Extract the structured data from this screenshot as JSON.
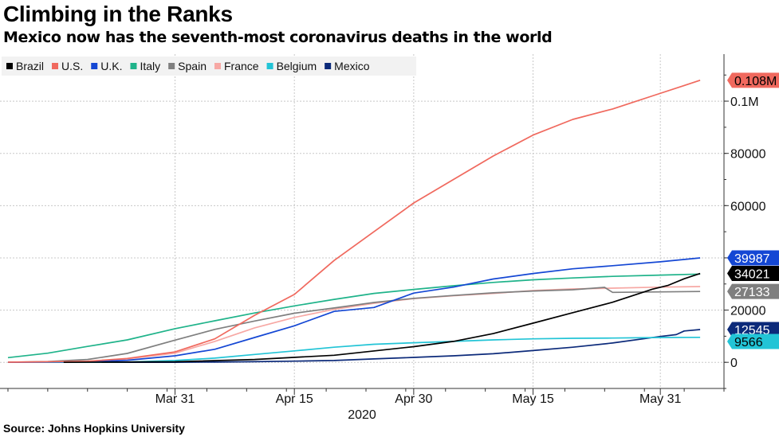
{
  "header": {
    "title": "Climbing in the Ranks",
    "subtitle": "Mexico now has the seventh-most coronavirus deaths in the world"
  },
  "footer": {
    "source": "Source: Johns Hopkins University"
  },
  "chart_data": {
    "type": "line",
    "x_ticks": [
      "Mar 31",
      "Apr 15",
      "Apr 30",
      "May 15",
      "May 31"
    ],
    "x_year_label": "2020",
    "y_ticks": [
      "0",
      "20000",
      "40000",
      "60000",
      "80000",
      "0.1M"
    ],
    "ylim": [
      -10000,
      118000
    ],
    "grid": true,
    "legend_position": "top-left",
    "series": [
      {
        "name": "Brazil",
        "color": "#000000",
        "label": "34021",
        "points": [
          [
            "2020-03-17",
            1
          ],
          [
            "2020-03-31",
            200
          ],
          [
            "2020-04-10",
            1100
          ],
          [
            "2020-04-20",
            2700
          ],
          [
            "2020-04-30",
            6000
          ],
          [
            "2020-05-05",
            8000
          ],
          [
            "2020-05-10",
            11000
          ],
          [
            "2020-05-15",
            15000
          ],
          [
            "2020-05-20",
            19000
          ],
          [
            "2020-05-25",
            23000
          ],
          [
            "2020-05-30",
            28000
          ],
          [
            "2020-06-01",
            29500
          ],
          [
            "2020-06-03",
            32000
          ],
          [
            "2020-06-05",
            34021
          ]
        ]
      },
      {
        "name": "U.S.",
        "color": "#f0695e",
        "label": "0.108M",
        "points": [
          [
            "2020-03-10",
            50
          ],
          [
            "2020-03-20",
            400
          ],
          [
            "2020-03-25",
            1500
          ],
          [
            "2020-03-31",
            4000
          ],
          [
            "2020-04-05",
            9000
          ],
          [
            "2020-04-10",
            18000
          ],
          [
            "2020-04-15",
            26000
          ],
          [
            "2020-04-20",
            39000
          ],
          [
            "2020-04-25",
            50000
          ],
          [
            "2020-04-30",
            61000
          ],
          [
            "2020-05-05",
            70000
          ],
          [
            "2020-05-10",
            79000
          ],
          [
            "2020-05-15",
            87000
          ],
          [
            "2020-05-20",
            93000
          ],
          [
            "2020-05-25",
            97000
          ],
          [
            "2020-05-30",
            102000
          ],
          [
            "2020-06-03",
            106000
          ],
          [
            "2020-06-05",
            108000
          ]
        ]
      },
      {
        "name": "U.K.",
        "color": "#1447d4",
        "label": "39987",
        "points": [
          [
            "2020-03-10",
            5
          ],
          [
            "2020-03-20",
            200
          ],
          [
            "2020-03-25",
            800
          ],
          [
            "2020-03-31",
            2500
          ],
          [
            "2020-04-05",
            5000
          ],
          [
            "2020-04-10",
            9500
          ],
          [
            "2020-04-15",
            14000
          ],
          [
            "2020-04-20",
            19500
          ],
          [
            "2020-04-25",
            21000
          ],
          [
            "2020-04-30",
            26500
          ],
          [
            "2020-05-05",
            28800
          ],
          [
            "2020-05-10",
            31900
          ],
          [
            "2020-05-15",
            34000
          ],
          [
            "2020-05-20",
            35800
          ],
          [
            "2020-05-25",
            37000
          ],
          [
            "2020-05-31",
            38500
          ],
          [
            "2020-06-05",
            39987
          ]
        ]
      },
      {
        "name": "Italy",
        "color": "#1fb38a",
        "label": "",
        "points": [
          [
            "2020-03-10",
            1800
          ],
          [
            "2020-03-15",
            3500
          ],
          [
            "2020-03-20",
            6100
          ],
          [
            "2020-03-25",
            8600
          ],
          [
            "2020-03-31",
            12900
          ],
          [
            "2020-04-05",
            15900
          ],
          [
            "2020-04-10",
            18900
          ],
          [
            "2020-04-15",
            21600
          ],
          [
            "2020-04-20",
            24100
          ],
          [
            "2020-04-25",
            26400
          ],
          [
            "2020-04-30",
            27900
          ],
          [
            "2020-05-05",
            29300
          ],
          [
            "2020-05-10",
            30600
          ],
          [
            "2020-05-15",
            31600
          ],
          [
            "2020-05-20",
            32300
          ],
          [
            "2020-05-25",
            32900
          ],
          [
            "2020-05-31",
            33400
          ],
          [
            "2020-06-05",
            33800
          ]
        ]
      },
      {
        "name": "Spain",
        "color": "#7f7f7f",
        "label": "27133",
        "points": [
          [
            "2020-03-10",
            35
          ],
          [
            "2020-03-15",
            300
          ],
          [
            "2020-03-20",
            1100
          ],
          [
            "2020-03-25",
            3400
          ],
          [
            "2020-03-31",
            8500
          ],
          [
            "2020-04-05",
            12600
          ],
          [
            "2020-04-10",
            15800
          ],
          [
            "2020-04-15",
            18800
          ],
          [
            "2020-04-20",
            20800
          ],
          [
            "2020-04-25",
            22900
          ],
          [
            "2020-04-30",
            24500
          ],
          [
            "2020-05-05",
            25600
          ],
          [
            "2020-05-10",
            26600
          ],
          [
            "2020-05-15",
            27300
          ],
          [
            "2020-05-20",
            27800
          ],
          [
            "2020-05-24",
            28700
          ],
          [
            "2020-05-25",
            26800
          ],
          [
            "2020-06-05",
            27133
          ]
        ]
      },
      {
        "name": "France",
        "color": "#f7a8a4",
        "label": "",
        "points": [
          [
            "2020-03-10",
            30
          ],
          [
            "2020-03-15",
            130
          ],
          [
            "2020-03-20",
            450
          ],
          [
            "2020-03-25",
            1300
          ],
          [
            "2020-03-31",
            3500
          ],
          [
            "2020-04-05",
            8000
          ],
          [
            "2020-04-10",
            13200
          ],
          [
            "2020-04-15",
            17200
          ],
          [
            "2020-04-20",
            20300
          ],
          [
            "2020-04-25",
            22600
          ],
          [
            "2020-04-30",
            24400
          ],
          [
            "2020-05-05",
            25500
          ],
          [
            "2020-05-10",
            26400
          ],
          [
            "2020-05-15",
            27500
          ],
          [
            "2020-05-20",
            28100
          ],
          [
            "2020-05-25",
            28400
          ],
          [
            "2020-05-31",
            28800
          ],
          [
            "2020-06-05",
            29000
          ]
        ]
      },
      {
        "name": "Belgium",
        "color": "#22c4d6",
        "label": "9566",
        "points": [
          [
            "2020-03-10",
            0
          ],
          [
            "2020-03-20",
            20
          ],
          [
            "2020-03-25",
            120
          ],
          [
            "2020-03-31",
            700
          ],
          [
            "2020-04-05",
            1600
          ],
          [
            "2020-04-10",
            3000
          ],
          [
            "2020-04-15",
            4400
          ],
          [
            "2020-04-20",
            5800
          ],
          [
            "2020-04-25",
            6900
          ],
          [
            "2020-04-30",
            7500
          ],
          [
            "2020-05-05",
            8000
          ],
          [
            "2020-05-10",
            8600
          ],
          [
            "2020-05-15",
            9000
          ],
          [
            "2020-05-20",
            9200
          ],
          [
            "2020-05-25",
            9300
          ],
          [
            "2020-05-31",
            9500
          ],
          [
            "2020-06-05",
            9566
          ]
        ]
      },
      {
        "name": "Mexico",
        "color": "#0c2a7a",
        "label": "12545",
        "points": [
          [
            "2020-03-10",
            0
          ],
          [
            "2020-03-25",
            2
          ],
          [
            "2020-03-31",
            30
          ],
          [
            "2020-04-05",
            90
          ],
          [
            "2020-04-10",
            230
          ],
          [
            "2020-04-15",
            450
          ],
          [
            "2020-04-20",
            700
          ],
          [
            "2020-04-25",
            1300
          ],
          [
            "2020-04-30",
            1900
          ],
          [
            "2020-05-05",
            2500
          ],
          [
            "2020-05-10",
            3300
          ],
          [
            "2020-05-15",
            4500
          ],
          [
            "2020-05-20",
            5800
          ],
          [
            "2020-05-25",
            7400
          ],
          [
            "2020-05-31",
            9900
          ],
          [
            "2020-06-02",
            10600
          ],
          [
            "2020-06-03",
            12000
          ],
          [
            "2020-06-05",
            12545
          ]
        ]
      }
    ]
  }
}
